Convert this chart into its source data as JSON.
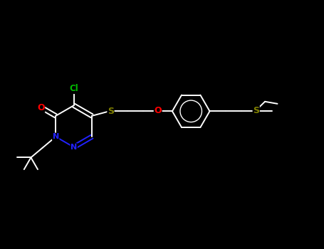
{
  "background_color": "#000000",
  "bond_color": "#ffffff",
  "atom_colors": {
    "Cl": "#00bb00",
    "O": "#ff0000",
    "S": "#808000",
    "N": "#2222ff",
    "C": "#ffffff"
  },
  "figsize": [
    4.55,
    3.5
  ],
  "dpi": 100
}
